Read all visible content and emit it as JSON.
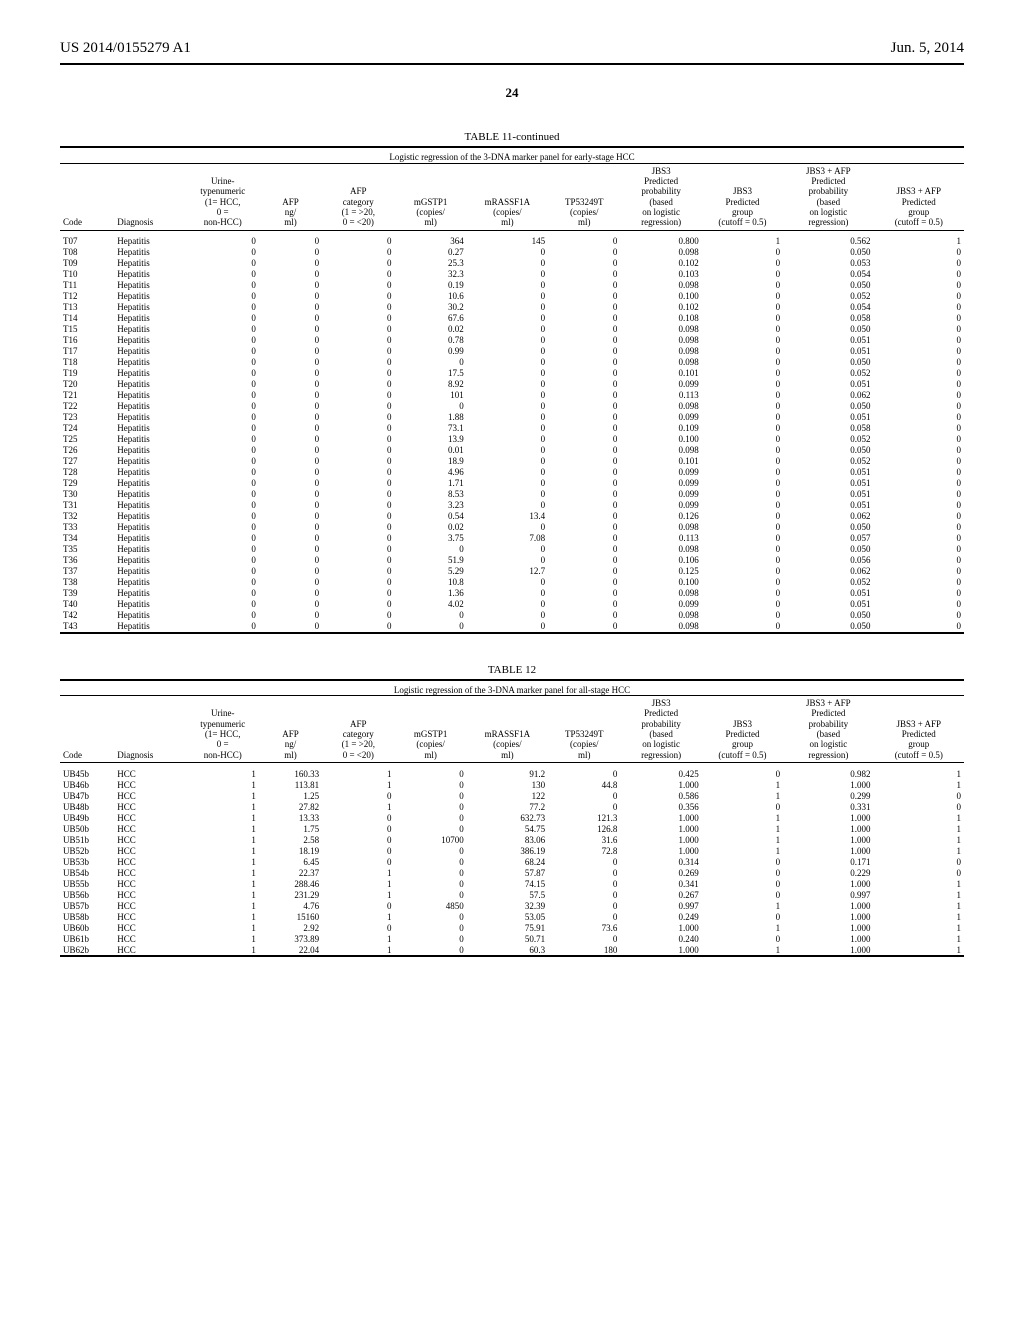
{
  "header": {
    "patent_no": "US 2014/0155279 A1",
    "date": "Jun. 5, 2014",
    "page_number": "24"
  },
  "table11": {
    "caption": "TABLE 11-continued",
    "subtitle": "Logistic regression of the 3-DNA marker panel for early-stage HCC",
    "columns": [
      "Code",
      "Diagnosis",
      "Urine-\ntypenumeric\n(1= HCC,\n0 =\nnon-HCC)",
      "AFP\nng/\nml)",
      "AFP\ncategory\n(1 = >20,\n0 = <20)",
      "mGSTP1\n(copies/\nml)",
      "mRASSF1A\n(copies/\nml)",
      "TP53249T\n(copies/\nml)",
      "JBS3\nPredicted\nprobability\n(based\non logistic\nregression)",
      "JBS3\nPredicted\ngroup\n(cutoff = 0.5)",
      "JBS3 + AFP\nPredicted\nprobability\n(based\non logistic\nregression)",
      "JBS3 + AFP\nPredicted\ngroup\n(cutoff = 0.5)"
    ],
    "rows": [
      [
        "T07",
        "Hepatitis",
        "0",
        "0",
        "0",
        "364",
        "145",
        "0",
        "0.800",
        "1",
        "0.562",
        "1"
      ],
      [
        "T08",
        "Hepatitis",
        "0",
        "0",
        "0",
        "0.27",
        "0",
        "0",
        "0.098",
        "0",
        "0.050",
        "0"
      ],
      [
        "T09",
        "Hepatitis",
        "0",
        "0",
        "0",
        "25.3",
        "0",
        "0",
        "0.102",
        "0",
        "0.053",
        "0"
      ],
      [
        "T10",
        "Hepatitis",
        "0",
        "0",
        "0",
        "32.3",
        "0",
        "0",
        "0.103",
        "0",
        "0.054",
        "0"
      ],
      [
        "T11",
        "Hepatitis",
        "0",
        "0",
        "0",
        "0.19",
        "0",
        "0",
        "0.098",
        "0",
        "0.050",
        "0"
      ],
      [
        "T12",
        "Hepatitis",
        "0",
        "0",
        "0",
        "10.6",
        "0",
        "0",
        "0.100",
        "0",
        "0.052",
        "0"
      ],
      [
        "T13",
        "Hepatitis",
        "0",
        "0",
        "0",
        "30.2",
        "0",
        "0",
        "0.102",
        "0",
        "0.054",
        "0"
      ],
      [
        "T14",
        "Hepatitis",
        "0",
        "0",
        "0",
        "67.6",
        "0",
        "0",
        "0.108",
        "0",
        "0.058",
        "0"
      ],
      [
        "T15",
        "Hepatitis",
        "0",
        "0",
        "0",
        "0.02",
        "0",
        "0",
        "0.098",
        "0",
        "0.050",
        "0"
      ],
      [
        "T16",
        "Hepatitis",
        "0",
        "0",
        "0",
        "0.78",
        "0",
        "0",
        "0.098",
        "0",
        "0.051",
        "0"
      ],
      [
        "T17",
        "Hepatitis",
        "0",
        "0",
        "0",
        "0.99",
        "0",
        "0",
        "0.098",
        "0",
        "0.051",
        "0"
      ],
      [
        "T18",
        "Hepatitis",
        "0",
        "0",
        "0",
        "0",
        "0",
        "0",
        "0.098",
        "0",
        "0.050",
        "0"
      ],
      [
        "T19",
        "Hepatitis",
        "0",
        "0",
        "0",
        "17.5",
        "0",
        "0",
        "0.101",
        "0",
        "0.052",
        "0"
      ],
      [
        "T20",
        "Hepatitis",
        "0",
        "0",
        "0",
        "8.92",
        "0",
        "0",
        "0.099",
        "0",
        "0.051",
        "0"
      ],
      [
        "T21",
        "Hepatitis",
        "0",
        "0",
        "0",
        "101",
        "0",
        "0",
        "0.113",
        "0",
        "0.062",
        "0"
      ],
      [
        "T22",
        "Hepatitis",
        "0",
        "0",
        "0",
        "0",
        "0",
        "0",
        "0.098",
        "0",
        "0.050",
        "0"
      ],
      [
        "T23",
        "Hepatitis",
        "0",
        "0",
        "0",
        "1.88",
        "0",
        "0",
        "0.099",
        "0",
        "0.051",
        "0"
      ],
      [
        "T24",
        "Hepatitis",
        "0",
        "0",
        "0",
        "73.1",
        "0",
        "0",
        "0.109",
        "0",
        "0.058",
        "0"
      ],
      [
        "T25",
        "Hepatitis",
        "0",
        "0",
        "0",
        "13.9",
        "0",
        "0",
        "0.100",
        "0",
        "0.052",
        "0"
      ],
      [
        "T26",
        "Hepatitis",
        "0",
        "0",
        "0",
        "0.01",
        "0",
        "0",
        "0.098",
        "0",
        "0.050",
        "0"
      ],
      [
        "T27",
        "Hepatitis",
        "0",
        "0",
        "0",
        "18.9",
        "0",
        "0",
        "0.101",
        "0",
        "0.052",
        "0"
      ],
      [
        "T28",
        "Hepatitis",
        "0",
        "0",
        "0",
        "4.96",
        "0",
        "0",
        "0.099",
        "0",
        "0.051",
        "0"
      ],
      [
        "T29",
        "Hepatitis",
        "0",
        "0",
        "0",
        "1.71",
        "0",
        "0",
        "0.099",
        "0",
        "0.051",
        "0"
      ],
      [
        "T30",
        "Hepatitis",
        "0",
        "0",
        "0",
        "8.53",
        "0",
        "0",
        "0.099",
        "0",
        "0.051",
        "0"
      ],
      [
        "T31",
        "Hepatitis",
        "0",
        "0",
        "0",
        "3.23",
        "0",
        "0",
        "0.099",
        "0",
        "0.051",
        "0"
      ],
      [
        "T32",
        "Hepatitis",
        "0",
        "0",
        "0",
        "0.54",
        "13.4",
        "0",
        "0.126",
        "0",
        "0.062",
        "0"
      ],
      [
        "T33",
        "Hepatitis",
        "0",
        "0",
        "0",
        "0.02",
        "0",
        "0",
        "0.098",
        "0",
        "0.050",
        "0"
      ],
      [
        "T34",
        "Hepatitis",
        "0",
        "0",
        "0",
        "3.75",
        "7.08",
        "0",
        "0.113",
        "0",
        "0.057",
        "0"
      ],
      [
        "T35",
        "Hepatitis",
        "0",
        "0",
        "0",
        "0",
        "0",
        "0",
        "0.098",
        "0",
        "0.050",
        "0"
      ],
      [
        "T36",
        "Hepatitis",
        "0",
        "0",
        "0",
        "51.9",
        "0",
        "0",
        "0.106",
        "0",
        "0.056",
        "0"
      ],
      [
        "T37",
        "Hepatitis",
        "0",
        "0",
        "0",
        "5.29",
        "12.7",
        "0",
        "0.125",
        "0",
        "0.062",
        "0"
      ],
      [
        "T38",
        "Hepatitis",
        "0",
        "0",
        "0",
        "10.8",
        "0",
        "0",
        "0.100",
        "0",
        "0.052",
        "0"
      ],
      [
        "T39",
        "Hepatitis",
        "0",
        "0",
        "0",
        "1.36",
        "0",
        "0",
        "0.098",
        "0",
        "0.051",
        "0"
      ],
      [
        "T40",
        "Hepatitis",
        "0",
        "0",
        "0",
        "4.02",
        "0",
        "0",
        "0.099",
        "0",
        "0.051",
        "0"
      ],
      [
        "T42",
        "Hepatitis",
        "0",
        "0",
        "0",
        "0",
        "0",
        "0",
        "0.098",
        "0",
        "0.050",
        "0"
      ],
      [
        "T43",
        "Hepatitis",
        "0",
        "0",
        "0",
        "0",
        "0",
        "0",
        "0.098",
        "0",
        "0.050",
        "0"
      ]
    ]
  },
  "table12": {
    "caption": "TABLE 12",
    "subtitle": "Logistic regression of the 3-DNA marker panel for all-stage HCC",
    "columns": [
      "Code",
      "Diagnosis",
      "Urine-\ntypenumeric\n(1= HCC,\n0 =\nnon-HCC)",
      "AFP\nng/\nml)",
      "AFP\ncategory\n(1 = >20,\n0 = <20)",
      "mGSTP1\n(copies/\nml)",
      "mRASSF1A\n(copies/\nml)",
      "TP53249T\n(copies/\nml)",
      "JBS3\nPredicted\nprobability\n(based\non logistic\nregression)",
      "JBS3\nPredicted\ngroup\n(cutoff = 0.5)",
      "JBS3 + AFP\nPredicted\nprobability\n(based\non logistic\nregression)",
      "JBS3 + AFP\nPredicted\ngroup\n(cutoff = 0.5)"
    ],
    "rows": [
      [
        "UB45b",
        "HCC",
        "1",
        "160.33",
        "1",
        "0",
        "91.2",
        "0",
        "0.425",
        "0",
        "0.982",
        "1"
      ],
      [
        "UB46b",
        "HCC",
        "1",
        "113.81",
        "1",
        "0",
        "130",
        "44.8",
        "1.000",
        "1",
        "1.000",
        "1"
      ],
      [
        "UB47b",
        "HCC",
        "1",
        "1.25",
        "0",
        "0",
        "122",
        "0",
        "0.586",
        "1",
        "0.299",
        "0"
      ],
      [
        "UB48b",
        "HCC",
        "1",
        "27.82",
        "1",
        "0",
        "77.2",
        "0",
        "0.356",
        "0",
        "0.331",
        "0"
      ],
      [
        "UB49b",
        "HCC",
        "1",
        "13.33",
        "0",
        "0",
        "632.73",
        "121.3",
        "1.000",
        "1",
        "1.000",
        "1"
      ],
      [
        "UB50b",
        "HCC",
        "1",
        "1.75",
        "0",
        "0",
        "54.75",
        "126.8",
        "1.000",
        "1",
        "1.000",
        "1"
      ],
      [
        "UB51b",
        "HCC",
        "1",
        "2.58",
        "0",
        "10700",
        "83.06",
        "31.6",
        "1.000",
        "1",
        "1.000",
        "1"
      ],
      [
        "UB52b",
        "HCC",
        "1",
        "18.19",
        "0",
        "0",
        "386.19",
        "72.8",
        "1.000",
        "1",
        "1.000",
        "1"
      ],
      [
        "UB53b",
        "HCC",
        "1",
        "6.45",
        "0",
        "0",
        "68.24",
        "0",
        "0.314",
        "0",
        "0.171",
        "0"
      ],
      [
        "UB54b",
        "HCC",
        "1",
        "22.37",
        "1",
        "0",
        "57.87",
        "0",
        "0.269",
        "0",
        "0.229",
        "0"
      ],
      [
        "UB55b",
        "HCC",
        "1",
        "288.46",
        "1",
        "0",
        "74.15",
        "0",
        "0.341",
        "0",
        "1.000",
        "1"
      ],
      [
        "UB56b",
        "HCC",
        "1",
        "231.29",
        "1",
        "0",
        "57.5",
        "0",
        "0.267",
        "0",
        "0.997",
        "1"
      ],
      [
        "UB57b",
        "HCC",
        "1",
        "4.76",
        "0",
        "4850",
        "32.39",
        "0",
        "0.997",
        "1",
        "1.000",
        "1"
      ],
      [
        "UB58b",
        "HCC",
        "1",
        "15160",
        "1",
        "0",
        "53.05",
        "0",
        "0.249",
        "0",
        "1.000",
        "1"
      ],
      [
        "UB60b",
        "HCC",
        "1",
        "2.92",
        "0",
        "0",
        "75.91",
        "73.6",
        "1.000",
        "1",
        "1.000",
        "1"
      ],
      [
        "UB61b",
        "HCC",
        "1",
        "373.89",
        "1",
        "0",
        "50.71",
        "0",
        "0.240",
        "0",
        "1.000",
        "1"
      ],
      [
        "UB62b",
        "HCC",
        "1",
        "22.04",
        "1",
        "0",
        "60.3",
        "180",
        "1.000",
        "1",
        "1.000",
        "1"
      ]
    ]
  },
  "colwidths_pct": [
    6,
    8,
    8,
    7,
    8,
    8,
    9,
    8,
    9,
    9,
    10,
    10
  ]
}
